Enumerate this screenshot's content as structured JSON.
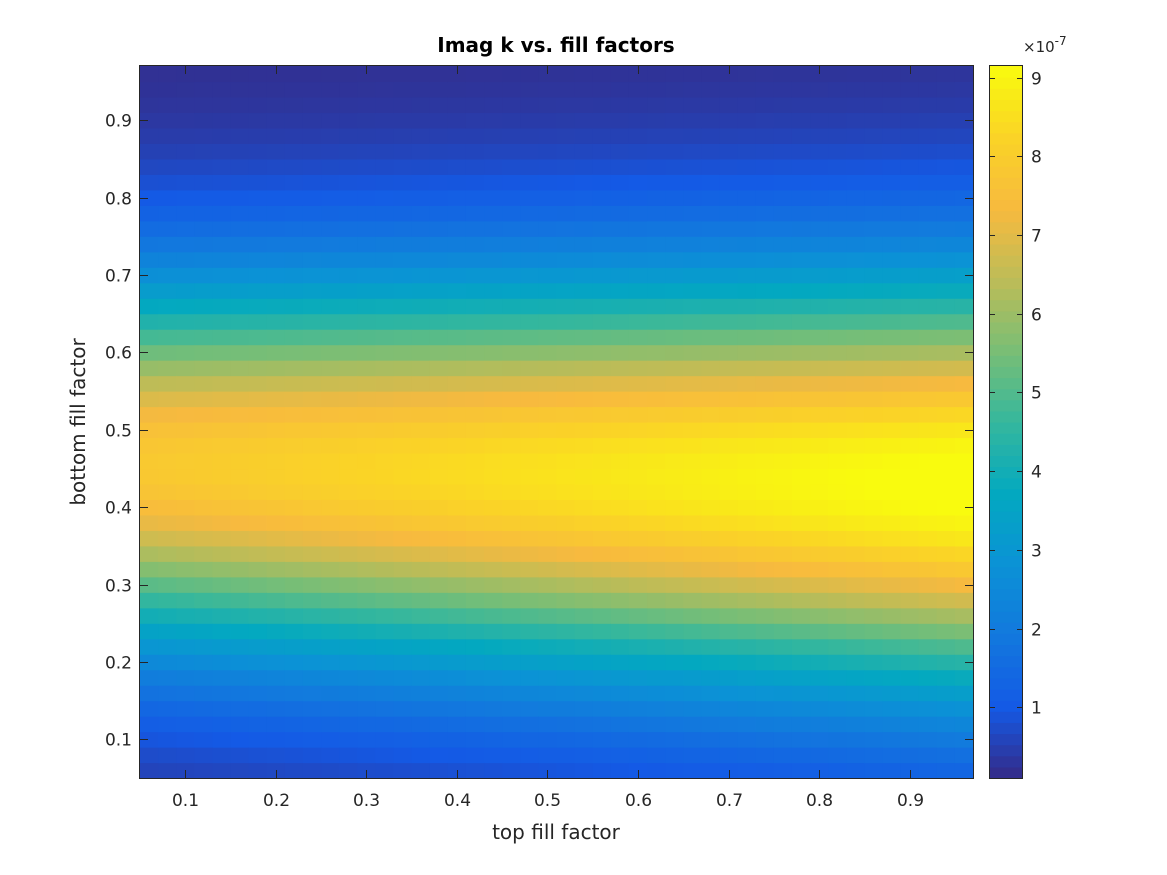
{
  "chart_data": {
    "type": "heatmap",
    "title": "Imag k vs. fill factors",
    "xlabel": "top fill factor",
    "ylabel": "bottom fill factor",
    "xlim": [
      0.05,
      0.97
    ],
    "ylim": [
      0.05,
      0.97
    ],
    "x_ticks": [
      0.1,
      0.2,
      0.3,
      0.4,
      0.5,
      0.6,
      0.7,
      0.8,
      0.9
    ],
    "x_tick_labels": [
      "0.1",
      "0.2",
      "0.3",
      "0.4",
      "0.5",
      "0.6",
      "0.7",
      "0.8",
      "0.9"
    ],
    "y_ticks": [
      0.1,
      0.2,
      0.3,
      0.4,
      0.5,
      0.6,
      0.7,
      0.8,
      0.9
    ],
    "y_tick_labels": [
      "0.1",
      "0.2",
      "0.3",
      "0.4",
      "0.5",
      "0.6",
      "0.7",
      "0.8",
      "0.9"
    ],
    "grid_x": {
      "start": 0.05,
      "step": 0.02,
      "count": 46
    },
    "grid_y": {
      "start": 0.05,
      "step": 0.02,
      "count": 46
    },
    "value_model": {
      "description": "Imag k (x 1e-7) vs fill factors: ridge centered near bottom fill factor 0.43, peak ~9.1 at top fill factor ~0.9",
      "base": 0.15,
      "center_y_start": 0.455,
      "center_y_slope": -0.025,
      "amp_start": 7.7,
      "amp_slope": 1.5,
      "width_start": 0.165,
      "width_slope": 0.02
    },
    "colorbar": {
      "min": 0.1,
      "max": 9.15,
      "ticks": [
        1,
        2,
        3,
        4,
        5,
        6,
        7,
        8,
        9
      ],
      "tick_labels": [
        "1",
        "2",
        "3",
        "4",
        "5",
        "6",
        "7",
        "8",
        "9"
      ],
      "exponent_label": "×10",
      "exponent_power": "-7"
    },
    "colormap": "parula"
  },
  "colors": {
    "axis": "#262626",
    "background": "#ffffff"
  }
}
